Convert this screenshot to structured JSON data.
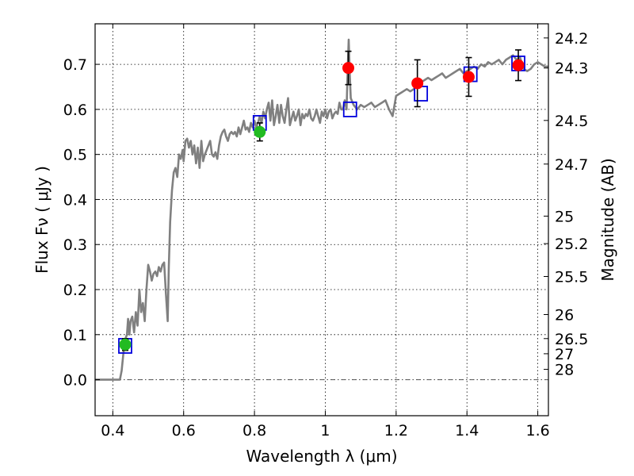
{
  "chart_data": {
    "type": "scatter",
    "xlabel": "Wavelength  λ (μm)",
    "ylabel": "Flux  Fν  ( μJy )",
    "y2label": "Magnitude (AB)",
    "xlim": [
      0.35,
      1.63
    ],
    "ylim": [
      -0.08,
      0.79
    ],
    "xticks": [
      0.4,
      0.6,
      0.8,
      1.0,
      1.2,
      1.4,
      1.6
    ],
    "xtick_labels": [
      "0.4",
      "0.6",
      "0.8",
      "1",
      "1.2",
      "1.4",
      "1.6"
    ],
    "yticks": [
      0.0,
      0.1,
      0.2,
      0.3,
      0.4,
      0.5,
      0.6,
      0.7
    ],
    "ytick_labels": [
      "0.0",
      "0.1",
      "0.2",
      "0.3",
      "0.4",
      "0.5",
      "0.6",
      "0.7"
    ],
    "magnitude_ticks": [
      {
        "mag": 24.2,
        "label": "24.2"
      },
      {
        "mag": 24.3,
        "label": "24.3"
      },
      {
        "mag": 24.5,
        "label": "24.5"
      },
      {
        "mag": 24.7,
        "label": "24.7"
      },
      {
        "mag": 25,
        "label": "25"
      },
      {
        "mag": 25.2,
        "label": "25.2"
      },
      {
        "mag": 25.5,
        "label": "25.5"
      },
      {
        "mag": 26,
        "label": "26"
      },
      {
        "mag": 26.5,
        "label": "26.5"
      },
      {
        "mag": 27,
        "label": "27"
      },
      {
        "mag": 28,
        "label": "28"
      }
    ],
    "grid": true,
    "colors": {
      "model": "#808080",
      "green": "#22bb22",
      "red": "#ff0000",
      "box": "#0000dd",
      "errorbar": "#000000",
      "zeroline": "#555555"
    },
    "model_spectrum": [
      [
        0.35,
        0.0
      ],
      [
        0.42,
        0.0
      ],
      [
        0.425,
        0.02
      ],
      [
        0.43,
        0.06
      ],
      [
        0.435,
        0.09
      ],
      [
        0.44,
        0.1
      ],
      [
        0.443,
        0.135
      ],
      [
        0.447,
        0.1
      ],
      [
        0.45,
        0.13
      ],
      [
        0.455,
        0.14
      ],
      [
        0.46,
        0.105
      ],
      [
        0.465,
        0.15
      ],
      [
        0.47,
        0.12
      ],
      [
        0.475,
        0.2
      ],
      [
        0.48,
        0.15
      ],
      [
        0.485,
        0.17
      ],
      [
        0.49,
        0.13
      ],
      [
        0.495,
        0.2
      ],
      [
        0.5,
        0.255
      ],
      [
        0.505,
        0.24
      ],
      [
        0.51,
        0.22
      ],
      [
        0.515,
        0.235
      ],
      [
        0.52,
        0.24
      ],
      [
        0.525,
        0.23
      ],
      [
        0.53,
        0.25
      ],
      [
        0.535,
        0.24
      ],
      [
        0.54,
        0.255
      ],
      [
        0.545,
        0.26
      ],
      [
        0.55,
        0.19
      ],
      [
        0.555,
        0.13
      ],
      [
        0.558,
        0.25
      ],
      [
        0.562,
        0.35
      ],
      [
        0.567,
        0.42
      ],
      [
        0.572,
        0.46
      ],
      [
        0.577,
        0.47
      ],
      [
        0.582,
        0.45
      ],
      [
        0.587,
        0.5
      ],
      [
        0.592,
        0.49
      ],
      [
        0.597,
        0.51
      ],
      [
        0.6,
        0.485
      ],
      [
        0.605,
        0.53
      ],
      [
        0.61,
        0.535
      ],
      [
        0.615,
        0.515
      ],
      [
        0.62,
        0.53
      ],
      [
        0.625,
        0.5
      ],
      [
        0.63,
        0.52
      ],
      [
        0.635,
        0.48
      ],
      [
        0.64,
        0.515
      ],
      [
        0.645,
        0.47
      ],
      [
        0.65,
        0.53
      ],
      [
        0.655,
        0.485
      ],
      [
        0.66,
        0.5
      ],
      [
        0.665,
        0.51
      ],
      [
        0.67,
        0.52
      ],
      [
        0.675,
        0.53
      ],
      [
        0.68,
        0.5
      ],
      [
        0.685,
        0.495
      ],
      [
        0.69,
        0.505
      ],
      [
        0.695,
        0.49
      ],
      [
        0.7,
        0.52
      ],
      [
        0.705,
        0.54
      ],
      [
        0.71,
        0.55
      ],
      [
        0.715,
        0.555
      ],
      [
        0.72,
        0.54
      ],
      [
        0.725,
        0.53
      ],
      [
        0.73,
        0.545
      ],
      [
        0.735,
        0.55
      ],
      [
        0.74,
        0.545
      ],
      [
        0.745,
        0.55
      ],
      [
        0.75,
        0.54
      ],
      [
        0.755,
        0.56
      ],
      [
        0.76,
        0.545
      ],
      [
        0.765,
        0.56
      ],
      [
        0.77,
        0.575
      ],
      [
        0.775,
        0.555
      ],
      [
        0.78,
        0.56
      ],
      [
        0.785,
        0.55
      ],
      [
        0.79,
        0.57
      ],
      [
        0.795,
        0.56
      ],
      [
        0.8,
        0.575
      ],
      [
        0.805,
        0.56
      ],
      [
        0.81,
        0.57
      ],
      [
        0.815,
        0.585
      ],
      [
        0.82,
        0.57
      ],
      [
        0.825,
        0.595
      ],
      [
        0.83,
        0.58
      ],
      [
        0.835,
        0.6
      ],
      [
        0.84,
        0.615
      ],
      [
        0.845,
        0.575
      ],
      [
        0.85,
        0.62
      ],
      [
        0.855,
        0.565
      ],
      [
        0.86,
        0.585
      ],
      [
        0.865,
        0.61
      ],
      [
        0.87,
        0.57
      ],
      [
        0.875,
        0.61
      ],
      [
        0.88,
        0.585
      ],
      [
        0.885,
        0.57
      ],
      [
        0.89,
        0.6
      ],
      [
        0.895,
        0.625
      ],
      [
        0.9,
        0.565
      ],
      [
        0.905,
        0.58
      ],
      [
        0.91,
        0.595
      ],
      [
        0.915,
        0.575
      ],
      [
        0.92,
        0.585
      ],
      [
        0.925,
        0.6
      ],
      [
        0.93,
        0.565
      ],
      [
        0.935,
        0.59
      ],
      [
        0.94,
        0.58
      ],
      [
        0.945,
        0.59
      ],
      [
        0.95,
        0.585
      ],
      [
        0.955,
        0.6
      ],
      [
        0.96,
        0.58
      ],
      [
        0.965,
        0.575
      ],
      [
        0.97,
        0.585
      ],
      [
        0.975,
        0.6
      ],
      [
        0.98,
        0.585
      ],
      [
        0.985,
        0.57
      ],
      [
        0.99,
        0.595
      ],
      [
        0.995,
        0.585
      ],
      [
        1.0,
        0.6
      ],
      [
        1.005,
        0.58
      ],
      [
        1.01,
        0.595
      ],
      [
        1.015,
        0.6
      ],
      [
        1.02,
        0.58
      ],
      [
        1.025,
        0.59
      ],
      [
        1.03,
        0.595
      ],
      [
        1.035,
        0.59
      ],
      [
        1.04,
        0.615
      ],
      [
        1.045,
        0.6
      ],
      [
        1.05,
        0.6
      ],
      [
        1.055,
        0.62
      ],
      [
        1.06,
        0.6
      ],
      [
        1.063,
        0.68
      ],
      [
        1.066,
        0.755
      ],
      [
        1.069,
        0.68
      ],
      [
        1.072,
        0.625
      ],
      [
        1.08,
        0.61
      ],
      [
        1.09,
        0.6
      ],
      [
        1.1,
        0.61
      ],
      [
        1.11,
        0.605
      ],
      [
        1.12,
        0.61
      ],
      [
        1.13,
        0.615
      ],
      [
        1.14,
        0.605
      ],
      [
        1.15,
        0.61
      ],
      [
        1.16,
        0.615
      ],
      [
        1.17,
        0.62
      ],
      [
        1.18,
        0.6
      ],
      [
        1.19,
        0.585
      ],
      [
        1.2,
        0.63
      ],
      [
        1.21,
        0.635
      ],
      [
        1.22,
        0.64
      ],
      [
        1.23,
        0.645
      ],
      [
        1.24,
        0.64
      ],
      [
        1.25,
        0.645
      ],
      [
        1.26,
        0.655
      ],
      [
        1.27,
        0.66
      ],
      [
        1.28,
        0.665
      ],
      [
        1.29,
        0.67
      ],
      [
        1.3,
        0.665
      ],
      [
        1.31,
        0.67
      ],
      [
        1.32,
        0.675
      ],
      [
        1.33,
        0.68
      ],
      [
        1.34,
        0.67
      ],
      [
        1.35,
        0.675
      ],
      [
        1.36,
        0.68
      ],
      [
        1.37,
        0.685
      ],
      [
        1.38,
        0.69
      ],
      [
        1.39,
        0.68
      ],
      [
        1.4,
        0.685
      ],
      [
        1.41,
        0.69
      ],
      [
        1.42,
        0.695
      ],
      [
        1.43,
        0.69
      ],
      [
        1.44,
        0.7
      ],
      [
        1.45,
        0.695
      ],
      [
        1.46,
        0.705
      ],
      [
        1.47,
        0.7
      ],
      [
        1.48,
        0.705
      ],
      [
        1.49,
        0.71
      ],
      [
        1.5,
        0.7
      ],
      [
        1.51,
        0.71
      ],
      [
        1.52,
        0.715
      ],
      [
        1.53,
        0.72
      ],
      [
        1.54,
        0.71
      ],
      [
        1.55,
        0.715
      ],
      [
        1.56,
        0.69
      ],
      [
        1.57,
        0.685
      ],
      [
        1.58,
        0.69
      ],
      [
        1.59,
        0.7
      ],
      [
        1.6,
        0.705
      ],
      [
        1.61,
        0.7
      ],
      [
        1.62,
        0.695
      ],
      [
        1.63,
        0.695
      ]
    ],
    "model_photometry": [
      {
        "x": 0.435,
        "y": 0.075
      },
      {
        "x": 0.815,
        "y": 0.57
      },
      {
        "x": 1.07,
        "y": 0.6
      },
      {
        "x": 1.27,
        "y": 0.635
      },
      {
        "x": 1.41,
        "y": 0.678
      },
      {
        "x": 1.545,
        "y": 0.702
      }
    ],
    "series": [
      {
        "name": "green points",
        "color": "green",
        "points": [
          {
            "x": 0.435,
            "y": 0.078,
            "err": 0.013
          },
          {
            "x": 0.815,
            "y": 0.55,
            "err": 0.02
          }
        ]
      },
      {
        "name": "red points",
        "color": "red",
        "points": [
          {
            "x": 1.065,
            "y": 0.692,
            "err": 0.037
          },
          {
            "x": 1.26,
            "y": 0.658,
            "err": 0.052
          },
          {
            "x": 1.405,
            "y": 0.672,
            "err": 0.043
          },
          {
            "x": 1.545,
            "y": 0.698,
            "err": 0.034
          }
        ]
      }
    ]
  }
}
